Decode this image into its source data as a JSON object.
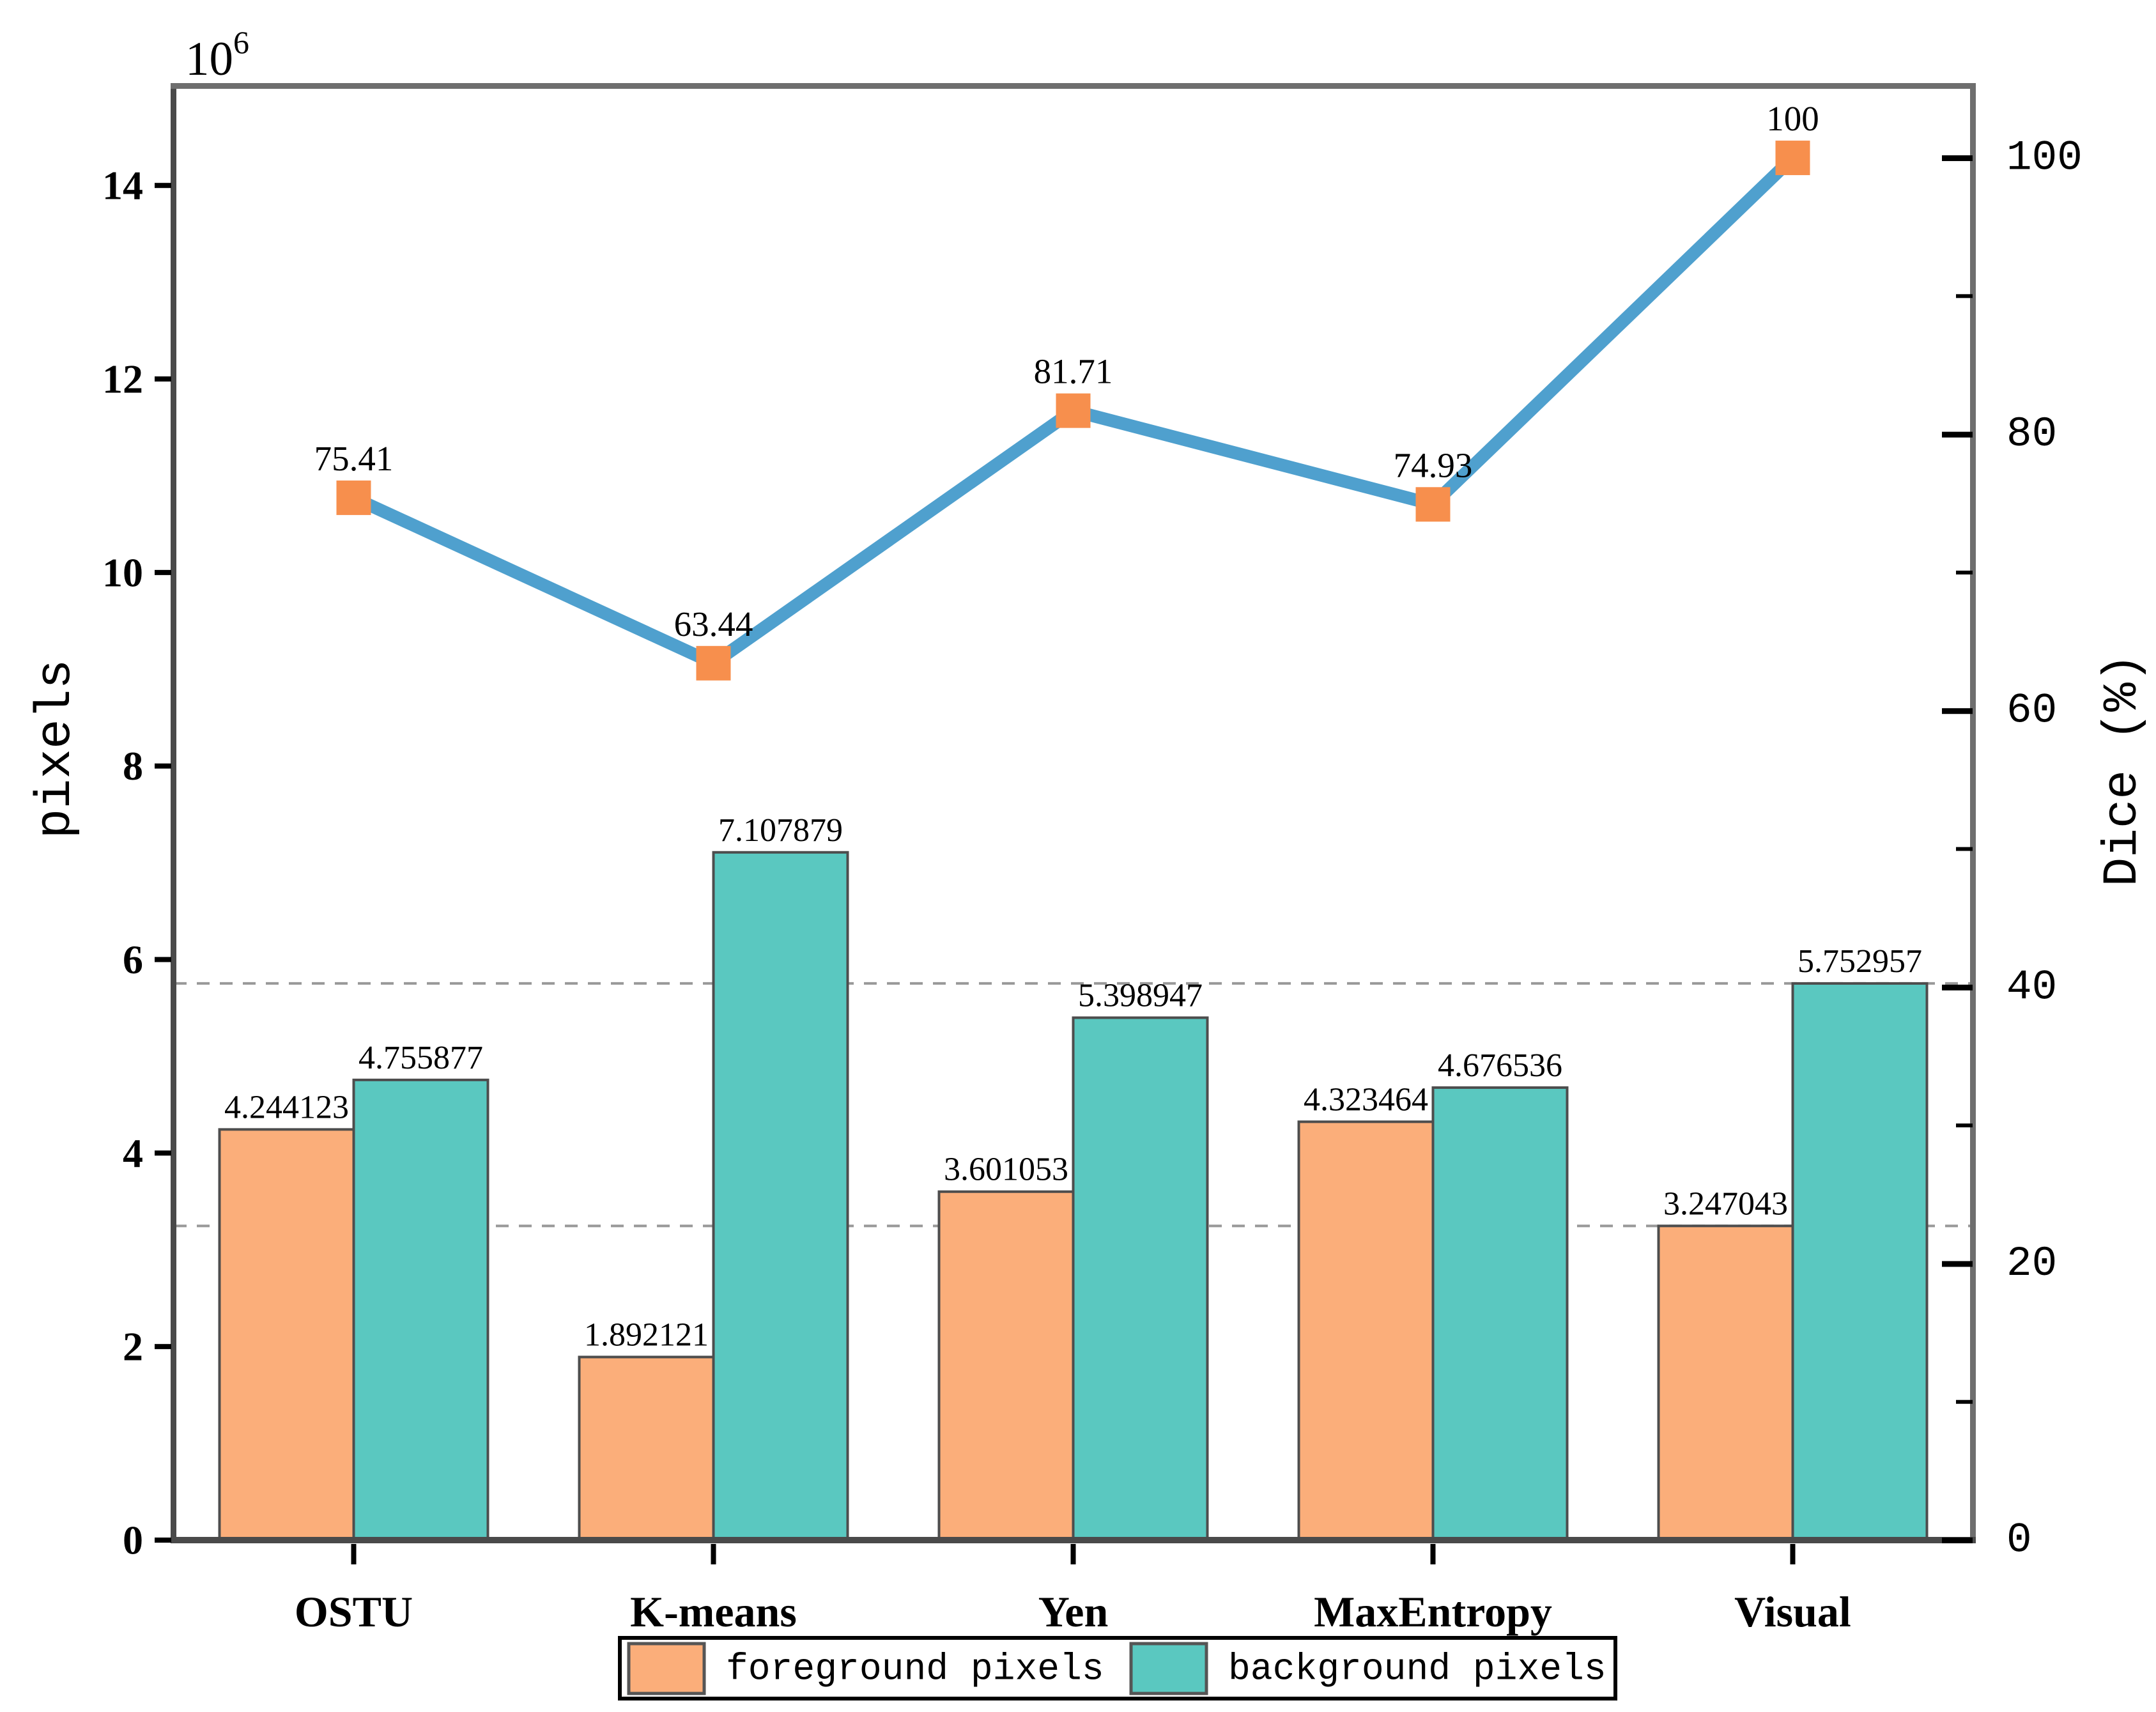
{
  "chart_data": {
    "type": "bar",
    "description": "Grouped bar chart of foreground/background pixel counts per thresholding method, with Dice (%) line on secondary axis",
    "categories": [
      "OSTU",
      "K-means",
      "Yen",
      "MaxEntropy",
      "Visual"
    ],
    "series": [
      {
        "name": "foreground pixels",
        "type": "bar",
        "axis": "left",
        "color": "#FBAE7A",
        "values": [
          4.244123,
          1.892121,
          3.601053,
          4.323464,
          3.247043
        ],
        "value_labels": [
          "4.244123",
          "1.892121",
          "3.601053",
          "4.323464",
          "3.247043"
        ]
      },
      {
        "name": "background pixels",
        "type": "bar",
        "axis": "left",
        "color": "#5AC8C0",
        "values": [
          4.755877,
          7.107879,
          5.398947,
          4.676536,
          5.752957
        ],
        "value_labels": [
          "4.755877",
          "7.107879",
          "5.398947",
          "4.676536",
          "5.752957"
        ]
      },
      {
        "name": "Dice",
        "type": "line",
        "axis": "right",
        "color": "#4FA0CE",
        "marker": "square",
        "marker_color": "#F78F4D",
        "values": [
          75.41,
          63.44,
          81.71,
          74.93,
          100
        ],
        "value_labels": [
          "75.41",
          "63.44",
          "81.71",
          "74.93",
          "100"
        ]
      }
    ],
    "left_axis": {
      "label": "pixels",
      "offset_base": "10",
      "offset_exponent": "6",
      "tick_values": [
        0,
        2,
        4,
        6,
        8,
        10,
        12,
        14
      ],
      "tick_labels": [
        "0",
        "2",
        "4",
        "6",
        "8",
        "10",
        "12",
        "14"
      ],
      "max": 15.025
    },
    "right_axis": {
      "label": "Dice (%)",
      "tick_values": [
        0,
        20,
        40,
        60,
        80,
        100
      ],
      "tick_labels": [
        "0",
        "20",
        "40",
        "60",
        "80",
        "100"
      ],
      "minor_tick_values": [
        10,
        30,
        50,
        70,
        90
      ],
      "max": 105.18
    },
    "reference_lines": {
      "style": "dashed",
      "color": "#999999",
      "values": [
        5.752957,
        3.247043
      ]
    },
    "legend": {
      "position": "bottom-center",
      "entries": [
        {
          "label": "foreground pixels",
          "color": "#FBAE7A"
        },
        {
          "label": "background pixels",
          "color": "#5AC8C0"
        }
      ]
    },
    "grid": false
  },
  "colors": {
    "background": "#ffffff",
    "bar_edge": "#4d4d4d",
    "spine": "#4a4a4a",
    "tick": "#000000",
    "text": "#000000",
    "legend_border": "#000000",
    "legend_swatch_border": "#555555"
  }
}
